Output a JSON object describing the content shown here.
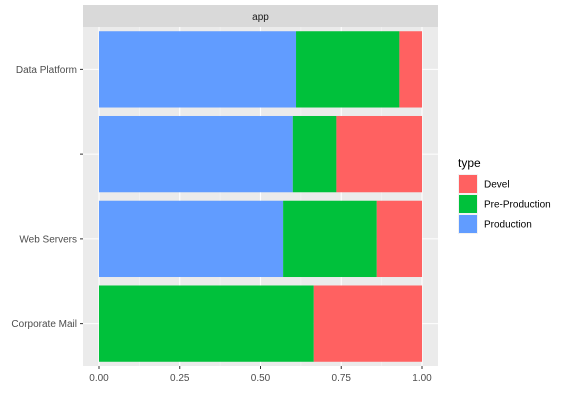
{
  "chart_data": {
    "type": "bar",
    "orientation": "horizontal",
    "stacked": true,
    "facet_label": "app",
    "categories": [
      "Data Platform",
      "",
      "Web Servers",
      "Corporate Mail"
    ],
    "series": [
      {
        "name": "Production",
        "color": "#619CFF",
        "values": [
          0.61,
          0.6,
          0.57,
          0.0
        ]
      },
      {
        "name": "Pre-Production",
        "color": "#00C13B",
        "values": [
          0.32,
          0.135,
          0.29,
          0.665
        ]
      },
      {
        "name": "Devel",
        "color": "#FF6161",
        "values": [
          0.07,
          0.265,
          0.14,
          0.335
        ]
      }
    ],
    "xticks": [
      "0.00",
      "0.25",
      "0.50",
      "0.75",
      "1.00"
    ],
    "xlim": [
      0,
      1
    ],
    "xlabel": "",
    "ylabel": "",
    "grid": true,
    "legend": {
      "title": "type",
      "placement": "right",
      "order": [
        "Devel",
        "Pre-Production",
        "Production"
      ]
    }
  }
}
